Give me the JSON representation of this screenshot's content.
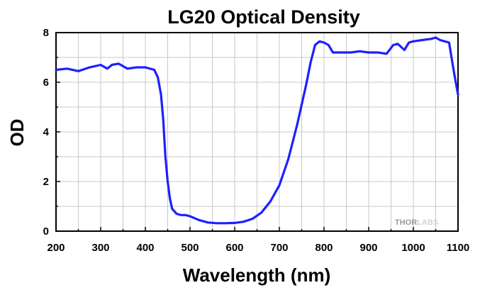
{
  "chart_data": {
    "type": "line",
    "title": "LG20 Optical Density",
    "xlabel": "Wavelength (nm)",
    "ylabel": "OD",
    "xlim": [
      200,
      1100
    ],
    "ylim": [
      0,
      8
    ],
    "xticks": [
      200,
      300,
      400,
      500,
      600,
      700,
      800,
      900,
      1000,
      1100
    ],
    "yticks": [
      0,
      2,
      4,
      6,
      8
    ],
    "grid": true,
    "series": [
      {
        "color": "#1f1fff",
        "x": [
          200,
          225,
          250,
          275,
          300,
          315,
          325,
          340,
          360,
          380,
          400,
          420,
          428,
          435,
          440,
          445,
          450,
          455,
          460,
          470,
          480,
          490,
          500,
          520,
          540,
          560,
          580,
          600,
          620,
          640,
          660,
          680,
          700,
          720,
          740,
          760,
          770,
          780,
          790,
          800,
          810,
          820,
          840,
          860,
          880,
          900,
          920,
          940,
          955,
          965,
          980,
          990,
          1000,
          1020,
          1040,
          1050,
          1060,
          1070,
          1080,
          1090,
          1100
        ],
        "y": [
          6.5,
          6.55,
          6.45,
          6.6,
          6.7,
          6.55,
          6.7,
          6.75,
          6.55,
          6.6,
          6.6,
          6.5,
          6.2,
          5.5,
          4.5,
          3.0,
          2.0,
          1.3,
          0.9,
          0.7,
          0.65,
          0.65,
          0.6,
          0.45,
          0.35,
          0.32,
          0.32,
          0.33,
          0.38,
          0.5,
          0.75,
          1.2,
          1.85,
          2.9,
          4.3,
          5.9,
          6.8,
          7.5,
          7.65,
          7.6,
          7.5,
          7.2,
          7.2,
          7.2,
          7.25,
          7.2,
          7.2,
          7.15,
          7.5,
          7.55,
          7.3,
          7.6,
          7.65,
          7.7,
          7.75,
          7.8,
          7.7,
          7.65,
          7.6,
          6.5,
          5.5
        ]
      }
    ]
  },
  "watermark": {
    "text_a": "THOR",
    "text_b": "LABS"
  }
}
